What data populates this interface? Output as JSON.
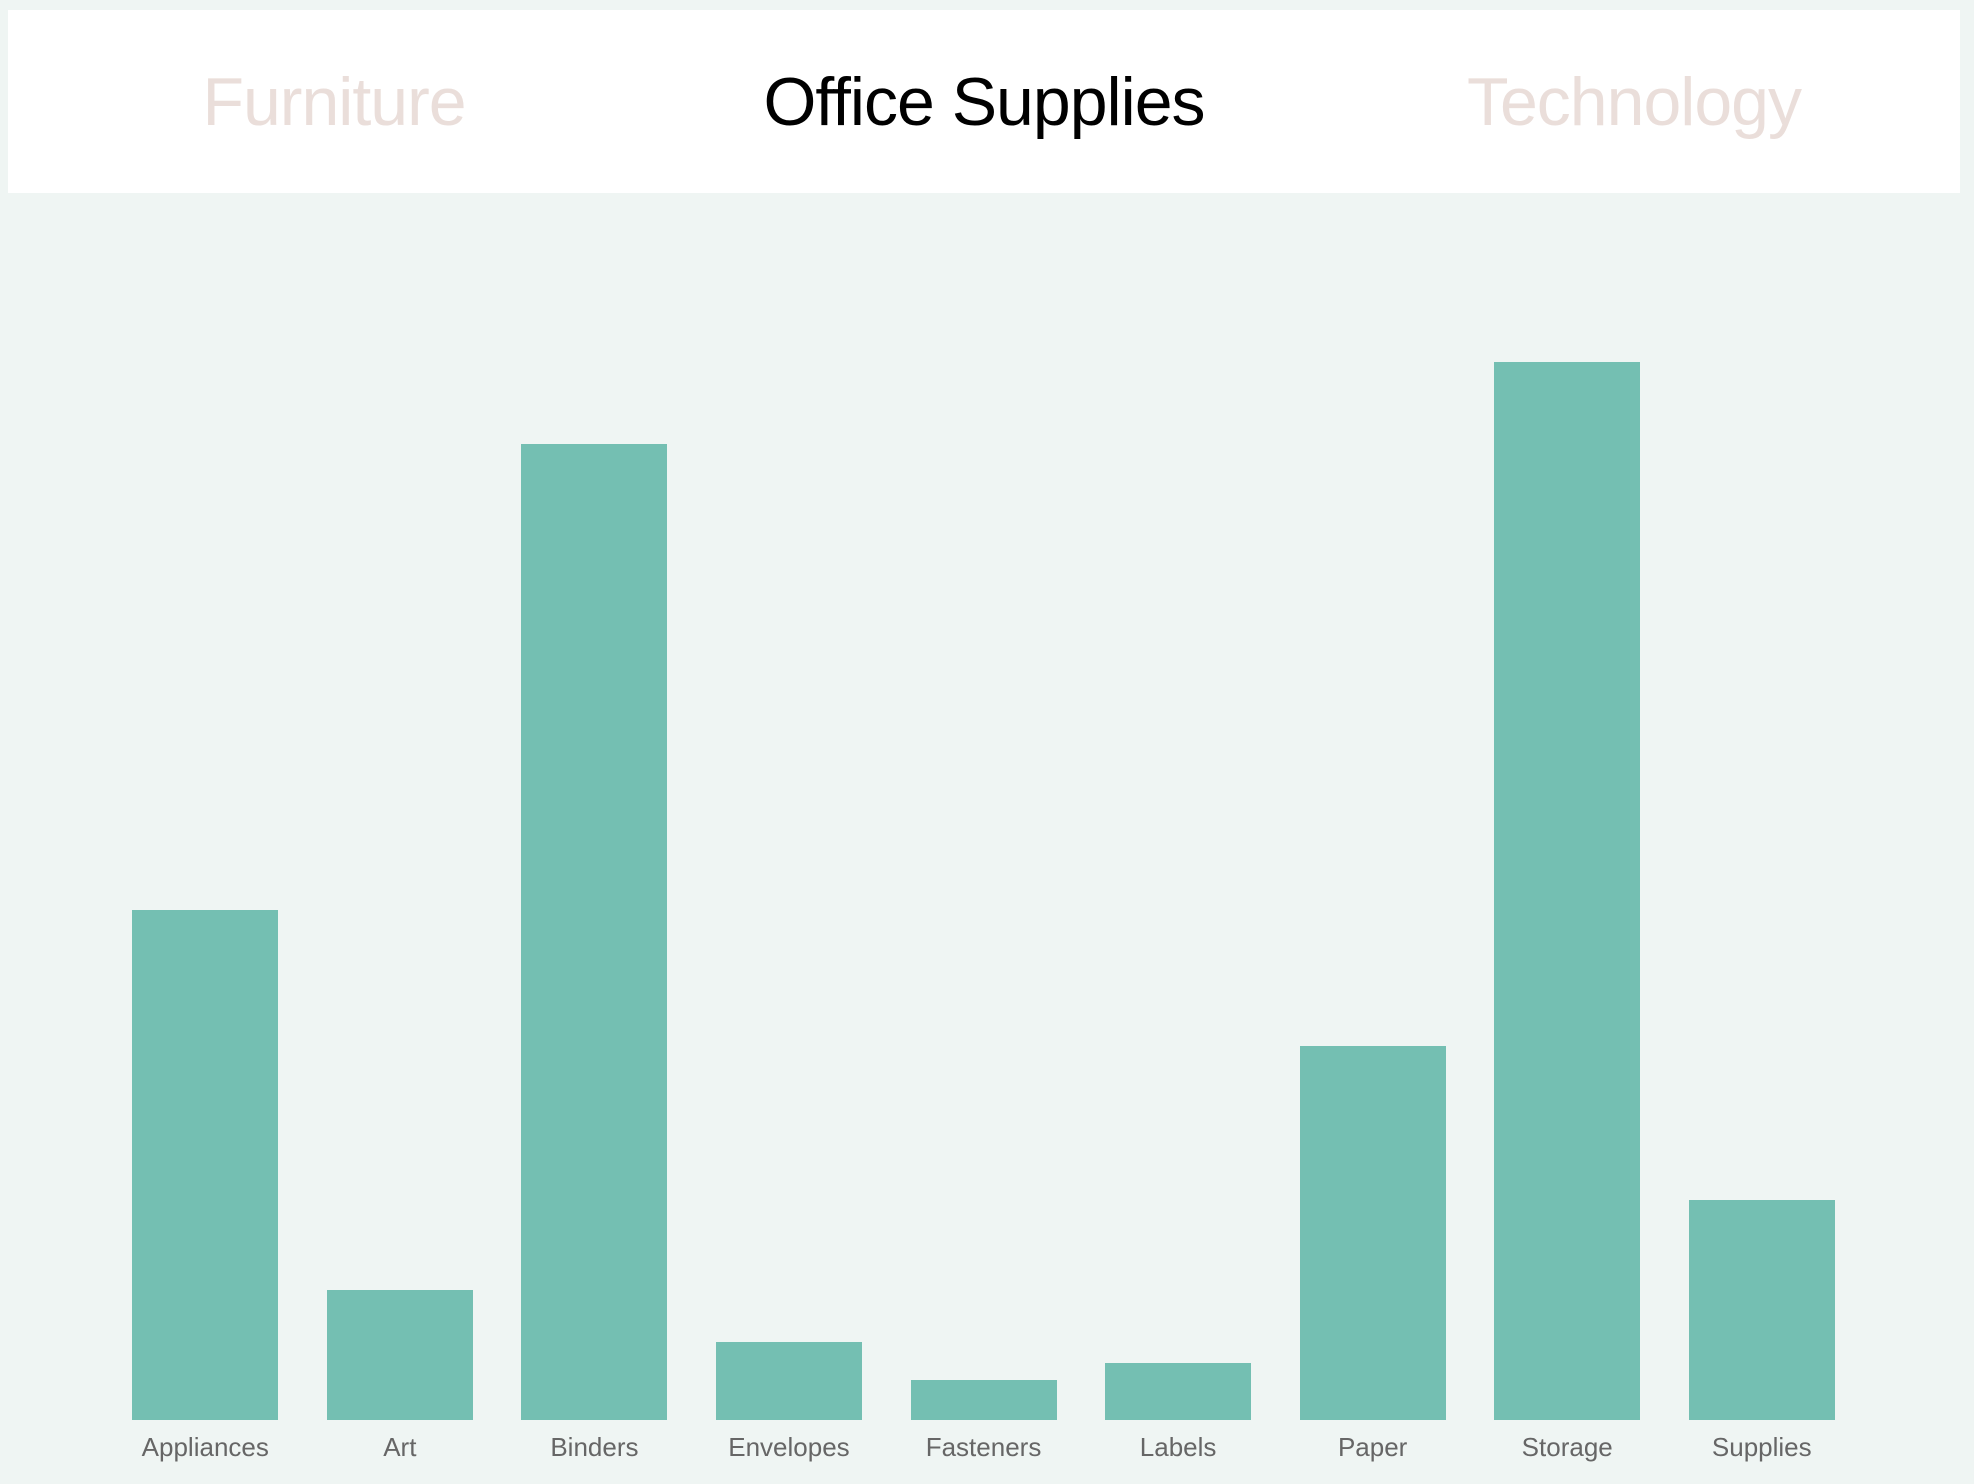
{
  "tabs": {
    "items": [
      {
        "label": "Furniture",
        "active": false
      },
      {
        "label": "Office Supplies",
        "active": true
      },
      {
        "label": "Technology",
        "active": false
      }
    ]
  },
  "colors": {
    "bar": "#74BFB2",
    "page_background": "#EFF5F3",
    "header_background": "#FFFFFF",
    "active_tab_text": "#000000",
    "inactive_tab_text": "#EADEDA",
    "category_label_text": "#666666"
  },
  "chart_data": {
    "type": "bar",
    "title": "Office Supplies",
    "categories": [
      "Appliances",
      "Art",
      "Binders",
      "Envelopes",
      "Fasteners",
      "Labels",
      "Paper",
      "Storage",
      "Supplies"
    ],
    "values": [
      510,
      130,
      976,
      78,
      40,
      57,
      374,
      1058,
      220
    ],
    "xlabel": "",
    "ylabel": "",
    "ylim": [
      0,
      1227
    ],
    "grid": false,
    "legend": false,
    "bar_color": "#74BFB2"
  }
}
